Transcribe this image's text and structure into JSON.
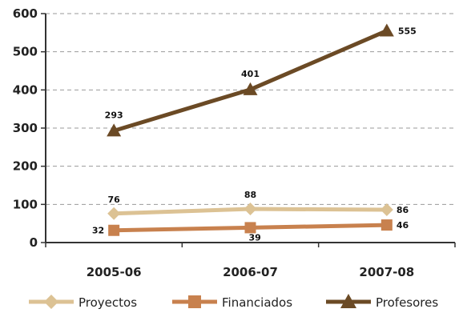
{
  "chart_data": {
    "type": "line",
    "categories": [
      "2005-06",
      "2006-07",
      "2007-08"
    ],
    "ylim": [
      0,
      600
    ],
    "yticks": [
      0,
      100,
      200,
      300,
      400,
      500,
      600
    ],
    "grid": true,
    "legend": "bottom",
    "series": [
      {
        "name": "Proyectos",
        "values": [
          76,
          88,
          86
        ],
        "color": "#dcc294",
        "marker": "diamond"
      },
      {
        "name": "Financiados",
        "values": [
          32,
          39,
          46
        ],
        "color": "#c8814e",
        "marker": "square"
      },
      {
        "name": "Profesores",
        "values": [
          293,
          401,
          555
        ],
        "color": "#6b4a25",
        "marker": "triangle"
      }
    ]
  }
}
